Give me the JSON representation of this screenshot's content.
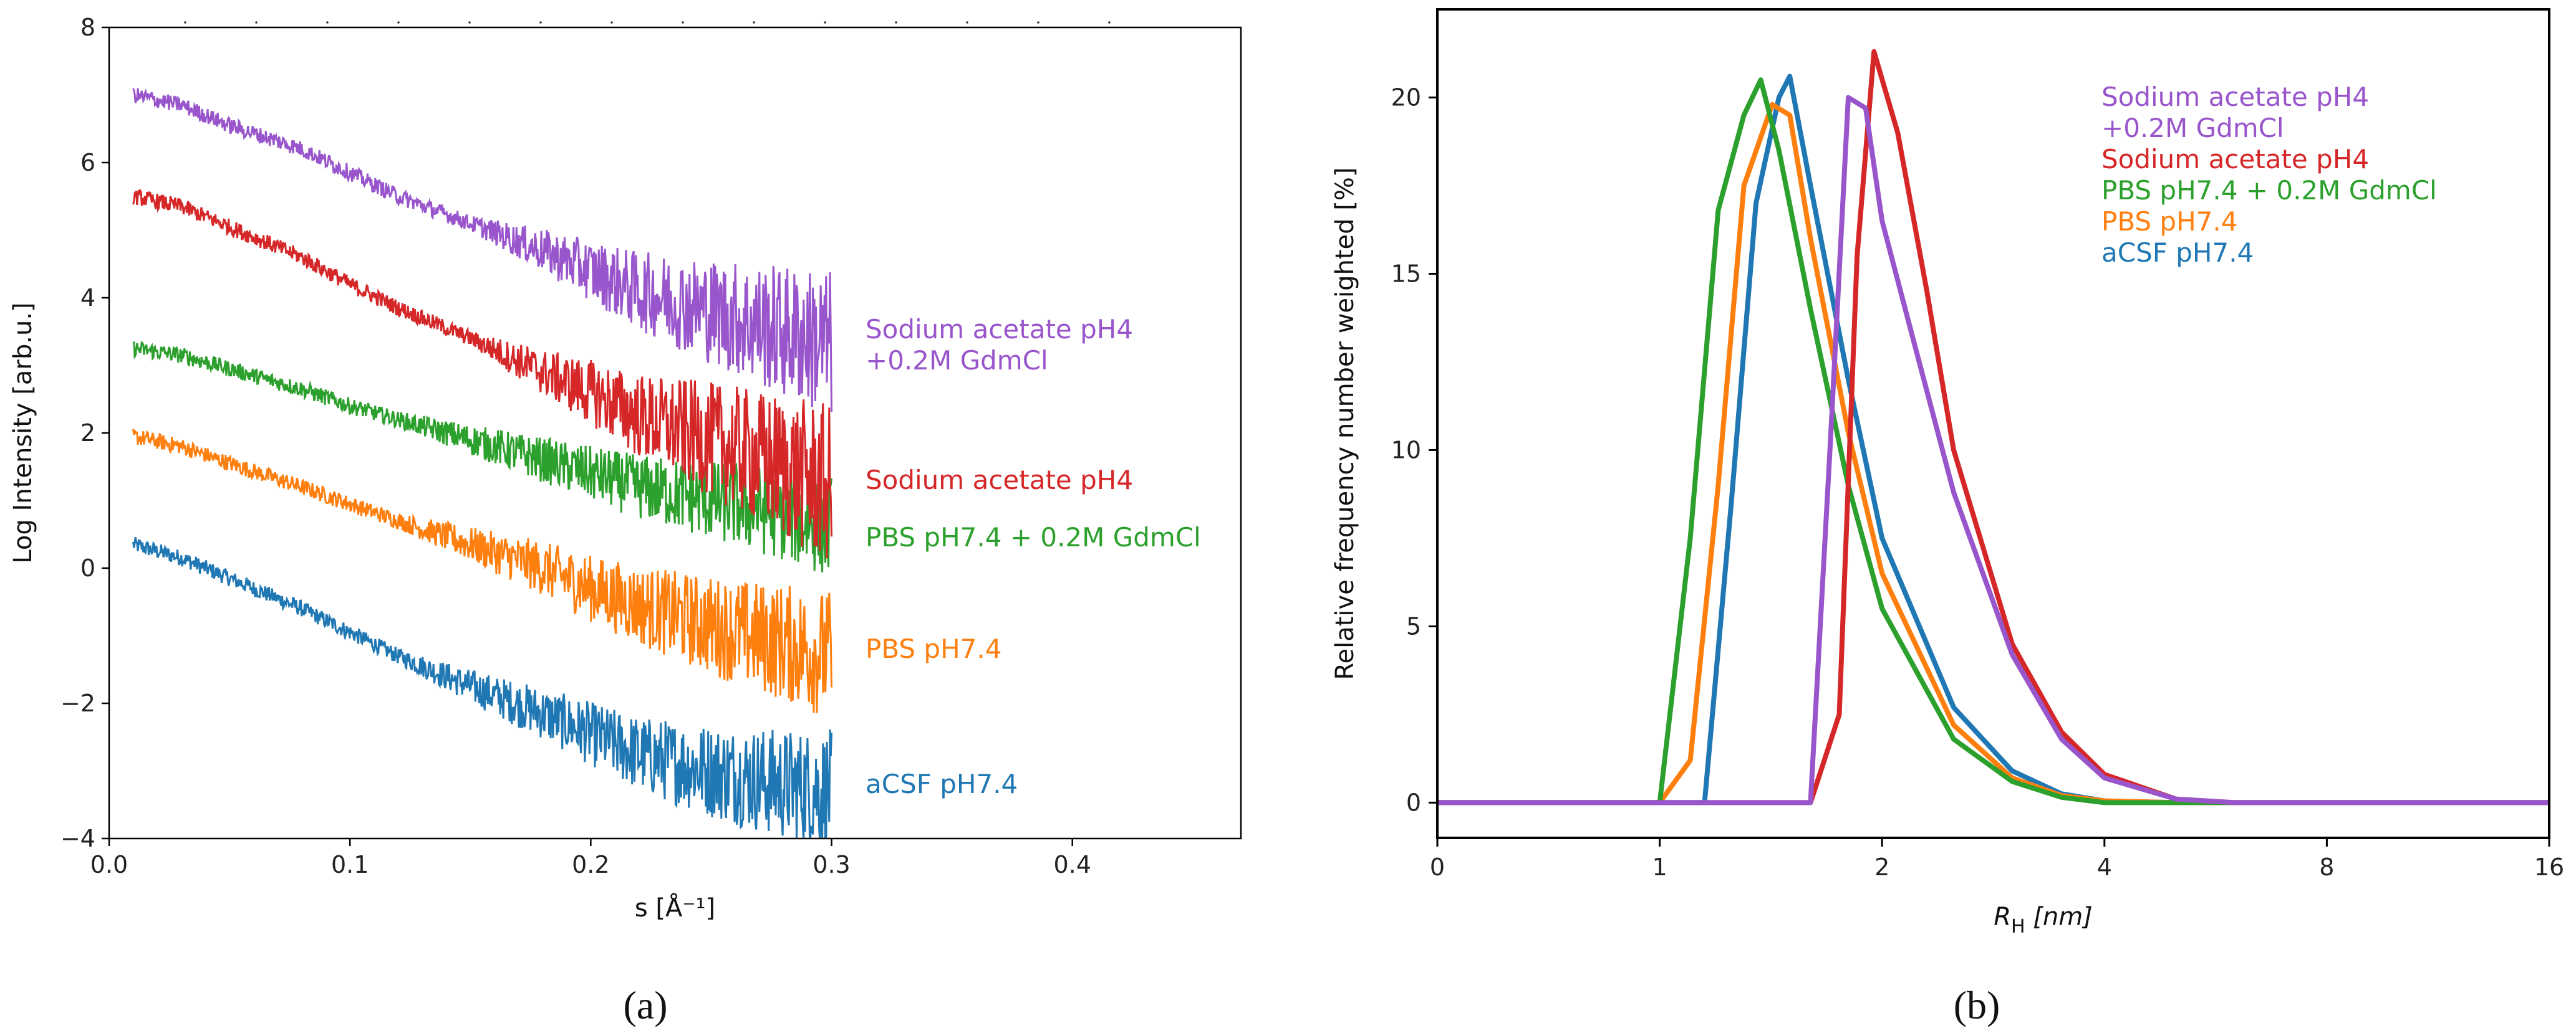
{
  "colors": {
    "purple": "#9955cc",
    "red": "#d62728",
    "green": "#2ca02c",
    "orange": "#ff7f0e",
    "blue": "#1f77b4"
  },
  "chart_data": [
    {
      "type": "line",
      "panel_label": "(a)",
      "xlabel": "s [Å⁻¹]",
      "ylabel": "Log Intensity [arb.u.]",
      "xlim": [
        0.0,
        0.47
      ],
      "ylim": [
        -4,
        8
      ],
      "xticks": [
        "0.0",
        "0.1",
        "0.2",
        "0.3",
        "0.4"
      ],
      "xtick_values": [
        0.0,
        0.1,
        0.2,
        0.3,
        0.4
      ],
      "yticks": [
        "−4",
        "−2",
        "0",
        "2",
        "4",
        "6",
        "8"
      ],
      "ytick_values": [
        -4,
        -2,
        0,
        2,
        4,
        6,
        8
      ],
      "series": [
        {
          "name": "Sodium acetate pH4\n+0.2M GdmCl",
          "label_lines": [
            "Sodium acetate pH4",
            "+0.2M GdmCl"
          ],
          "label_y": 3.3,
          "color": "purple",
          "x": [
            0.01,
            0.03,
            0.05,
            0.08,
            0.1,
            0.12,
            0.15,
            0.18,
            0.2,
            0.22,
            0.25,
            0.28,
            0.3
          ],
          "values": [
            7.0,
            6.85,
            6.55,
            6.2,
            5.85,
            5.5,
            5.1,
            4.7,
            4.4,
            4.1,
            3.8,
            3.5,
            3.3
          ],
          "noise_start": 0.15,
          "noise_amp": 1.0
        },
        {
          "name": "Sodium acetate pH4",
          "label_lines": [
            "Sodium acetate pH4"
          ],
          "label_y": 1.3,
          "color": "red",
          "x": [
            0.01,
            0.03,
            0.05,
            0.08,
            0.1,
            0.12,
            0.15,
            0.18,
            0.2,
            0.22,
            0.25,
            0.28,
            0.3
          ],
          "values": [
            5.5,
            5.35,
            5.05,
            4.6,
            4.2,
            3.85,
            3.4,
            2.9,
            2.6,
            2.25,
            1.9,
            1.5,
            1.2
          ],
          "noise_start": 0.15,
          "noise_amp": 1.1
        },
        {
          "name": "PBS pH7.4 + 0.2M GdmCl",
          "label_lines": [
            "PBS pH7.4 + 0.2M GdmCl"
          ],
          "label_y": 0.45,
          "color": "green",
          "x": [
            0.01,
            0.03,
            0.05,
            0.08,
            0.1,
            0.12,
            0.15,
            0.18,
            0.2,
            0.22,
            0.25,
            0.28,
            0.3
          ],
          "values": [
            3.25,
            3.15,
            2.95,
            2.65,
            2.4,
            2.2,
            1.9,
            1.6,
            1.4,
            1.2,
            1.0,
            0.8,
            0.6
          ],
          "noise_start": 0.12,
          "noise_amp": 0.65
        },
        {
          "name": "PBS pH7.4",
          "label_lines": [
            "PBS pH7.4"
          ],
          "label_y": -1.2,
          "color": "orange",
          "x": [
            0.01,
            0.03,
            0.05,
            0.08,
            0.1,
            0.12,
            0.15,
            0.18,
            0.2,
            0.22,
            0.25,
            0.28,
            0.3
          ],
          "values": [
            1.95,
            1.8,
            1.55,
            1.2,
            0.95,
            0.7,
            0.35,
            0.0,
            -0.3,
            -0.55,
            -0.85,
            -1.1,
            -1.3
          ],
          "noise_start": 0.12,
          "noise_amp": 0.85
        },
        {
          "name": "aCSF pH7.4",
          "label_lines": [
            "aCSF pH7.4"
          ],
          "label_y": -3.2,
          "color": "blue",
          "x": [
            0.01,
            0.03,
            0.05,
            0.08,
            0.1,
            0.12,
            0.15,
            0.18,
            0.2,
            0.22,
            0.25,
            0.28,
            0.3
          ],
          "values": [
            0.35,
            0.15,
            -0.15,
            -0.6,
            -0.95,
            -1.3,
            -1.75,
            -2.15,
            -2.45,
            -2.75,
            -3.0,
            -3.2,
            -3.3
          ],
          "noise_start": 0.12,
          "noise_amp": 0.8
        }
      ]
    },
    {
      "type": "line",
      "panel_label": "(b)",
      "xlabel_main": "R",
      "xlabel_sub": "H",
      "xlabel_unit": "[nm]",
      "ylabel": "Relative frequency number weighted [%]",
      "xlim": [
        0,
        16
      ],
      "ylim": [
        -1,
        22.5
      ],
      "xticks": [
        "0",
        "1",
        "2",
        "4",
        "8",
        "16"
      ],
      "xtick_values": [
        0,
        1,
        2,
        4,
        8,
        16
      ],
      "yticks": [
        "0",
        "5",
        "10",
        "15",
        "20"
      ],
      "ytick_values": [
        0,
        5,
        10,
        15,
        20
      ],
      "legend_position": "top-right",
      "series": [
        {
          "name": "Sodium acetate pH4\n+0.2M GdmCl",
          "label_lines": [
            "Sodium acetate pH4",
            "+0.2M GdmCl"
          ],
          "color": "purple",
          "x": [
            0,
            1.6,
            1.7,
            1.8,
            1.9,
            2.0,
            2.2,
            2.5,
            3.0,
            3.5,
            4.0,
            5.0,
            6.0,
            8.0,
            16
          ],
          "values": [
            0,
            0,
            10.0,
            20.0,
            19.7,
            16.5,
            13.2,
            8.8,
            4.2,
            1.8,
            0.7,
            0.1,
            0.0,
            0,
            0
          ]
        },
        {
          "name": "Sodium acetate pH4",
          "label_lines": [
            "Sodium acetate pH4"
          ],
          "color": "red",
          "x": [
            0,
            1.6,
            1.75,
            1.85,
            1.95,
            2.1,
            2.3,
            2.5,
            3.0,
            3.5,
            4.0,
            5.0,
            6.0,
            8.0,
            16
          ],
          "values": [
            0,
            0,
            2.5,
            15.5,
            21.3,
            19.0,
            14.5,
            10.0,
            4.5,
            2.0,
            0.8,
            0.1,
            0.0,
            0,
            0
          ]
        },
        {
          "name": "PBS pH7.4 + 0.2M GdmCl",
          "label_lines": [
            "PBS pH7.4 + 0.2M GdmCl"
          ],
          "color": "green",
          "x": [
            0,
            1.0,
            1.1,
            1.2,
            1.3,
            1.37,
            1.45,
            1.6,
            1.8,
            2.0,
            2.5,
            3.0,
            3.5,
            4.0,
            5.0,
            16
          ],
          "values": [
            0,
            0,
            7.5,
            16.8,
            19.5,
            20.5,
            18.5,
            14.0,
            9.0,
            5.5,
            1.8,
            0.6,
            0.15,
            0.0,
            0,
            0
          ]
        },
        {
          "name": "PBS pH7.4",
          "label_lines": [
            "PBS pH7.4"
          ],
          "color": "orange",
          "x": [
            0,
            1.0,
            1.1,
            1.2,
            1.3,
            1.42,
            1.5,
            1.6,
            1.8,
            2.0,
            2.5,
            3.0,
            3.5,
            4.0,
            5.0,
            16
          ],
          "values": [
            0,
            0,
            1.2,
            9.0,
            17.5,
            19.8,
            19.5,
            16.0,
            10.5,
            6.5,
            2.2,
            0.7,
            0.2,
            0.05,
            0,
            0
          ]
        },
        {
          "name": "aCSF pH7.4",
          "label_lines": [
            "aCSF pH7.4"
          ],
          "color": "blue",
          "x": [
            0,
            1.1,
            1.15,
            1.25,
            1.35,
            1.45,
            1.5,
            1.6,
            1.8,
            2.0,
            2.5,
            3.0,
            3.5,
            4.0,
            5.0,
            16
          ],
          "values": [
            0,
            0,
            0.0,
            8.5,
            17.0,
            20.0,
            20.6,
            17.5,
            12.0,
            7.5,
            2.7,
            0.9,
            0.25,
            0.05,
            0,
            0
          ]
        }
      ]
    }
  ]
}
